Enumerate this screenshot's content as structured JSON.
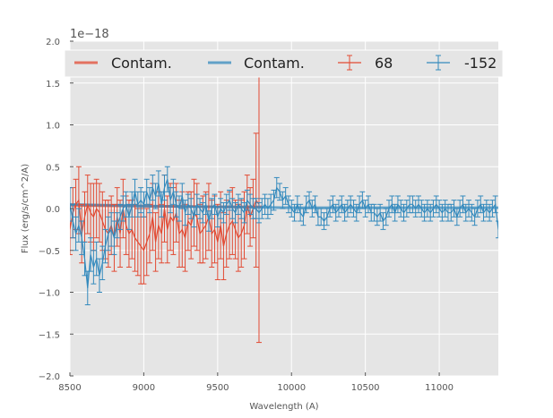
{
  "chart_data": {
    "type": "line",
    "title": "",
    "xlabel": "Wavelength (A)",
    "ylabel": "Flux (erg/s/cm^2/A)",
    "y_offset_label": "1e−18",
    "xlim": [
      8500,
      11400
    ],
    "ylim": [
      -2.0,
      2.0
    ],
    "y_scale": 1e-18,
    "x_ticks": [
      8500,
      9000,
      9500,
      10000,
      10500,
      11000
    ],
    "y_ticks": [
      -2.0,
      -1.5,
      -1.0,
      -0.5,
      0.0,
      0.5,
      1.0,
      1.5,
      2.0
    ],
    "y_tick_labels": [
      "−2.0",
      "−1.5",
      "−1.0",
      "−0.5",
      "0.0",
      "0.5",
      "1.0",
      "1.5",
      "2.0"
    ],
    "grid": true,
    "legend_position": "top",
    "colors": {
      "red": "#e24a33",
      "blue": "#348abd",
      "background": "#e5e5e5"
    },
    "series": [
      {
        "name": "Contam.",
        "kind": "line",
        "color": "#e24a33",
        "x": [
          8500,
          9000,
          9500,
          9800
        ],
        "y": [
          0.04,
          0.03,
          0.02,
          0.02
        ]
      },
      {
        "name": "Contam.",
        "kind": "line",
        "color": "#348abd",
        "x": [
          8500,
          9000,
          9500,
          10000,
          10500,
          11000,
          11400
        ],
        "y": [
          0.05,
          0.03,
          0.02,
          0.01,
          0.01,
          0.01,
          0.01
        ]
      },
      {
        "name": "68",
        "kind": "errorbar",
        "color": "#e24a33",
        "x": [
          8500,
          8520,
          8540,
          8560,
          8580,
          8600,
          8620,
          8640,
          8660,
          8680,
          8700,
          8720,
          8740,
          8760,
          8780,
          8800,
          8820,
          8840,
          8860,
          8880,
          8900,
          8920,
          8940,
          8960,
          8980,
          9000,
          9020,
          9040,
          9060,
          9080,
          9100,
          9120,
          9140,
          9160,
          9180,
          9200,
          9220,
          9240,
          9260,
          9280,
          9300,
          9320,
          9340,
          9360,
          9380,
          9400,
          9420,
          9440,
          9460,
          9480,
          9500,
          9520,
          9540,
          9560,
          9580,
          9600,
          9620,
          9640,
          9660,
          9680,
          9700,
          9720,
          9740,
          9760,
          9780
        ],
        "y": [
          -0.25,
          -0.05,
          0.05,
          0.1,
          -0.3,
          -0.1,
          0.05,
          -0.05,
          -0.1,
          0.0,
          -0.05,
          -0.15,
          -0.25,
          -0.3,
          -0.2,
          -0.35,
          -0.1,
          -0.3,
          0.0,
          -0.2,
          -0.3,
          -0.25,
          -0.35,
          -0.4,
          -0.45,
          -0.5,
          -0.4,
          -0.3,
          -0.1,
          -0.4,
          -0.2,
          -0.3,
          0.0,
          -0.25,
          -0.1,
          -0.15,
          -0.05,
          -0.3,
          -0.25,
          -0.35,
          -0.15,
          -0.2,
          -0.05,
          -0.1,
          -0.3,
          -0.25,
          -0.2,
          -0.1,
          -0.3,
          -0.25,
          -0.4,
          -0.2,
          -0.45,
          -0.3,
          -0.2,
          -0.15,
          -0.25,
          -0.35,
          -0.3,
          -0.2,
          0.05,
          -0.1,
          0.0,
          0.1,
          0.05
        ],
        "err": [
          0.3,
          0.3,
          0.3,
          0.4,
          0.35,
          0.3,
          0.35,
          0.35,
          0.4,
          0.35,
          0.35,
          0.35,
          0.35,
          0.4,
          0.35,
          0.4,
          0.35,
          0.4,
          0.35,
          0.35,
          0.4,
          0.35,
          0.4,
          0.4,
          0.45,
          0.4,
          0.4,
          0.35,
          0.4,
          0.35,
          0.4,
          0.35,
          0.4,
          0.4,
          0.4,
          0.4,
          0.35,
          0.4,
          0.45,
          0.4,
          0.35,
          0.4,
          0.4,
          0.4,
          0.35,
          0.4,
          0.4,
          0.4,
          0.4,
          0.4,
          0.45,
          0.4,
          0.4,
          0.4,
          0.4,
          0.4,
          0.35,
          0.4,
          0.4,
          0.4,
          0.35,
          0.35,
          0.35,
          0.8,
          1.65
        ]
      },
      {
        "name": "-152",
        "kind": "errorbar",
        "color": "#348abd",
        "x": [
          8500,
          8520,
          8540,
          8560,
          8580,
          8600,
          8620,
          8640,
          8660,
          8680,
          8700,
          8720,
          8740,
          8760,
          8780,
          8800,
          8820,
          8840,
          8860,
          8880,
          8900,
          8920,
          8940,
          8960,
          8980,
          9000,
          9020,
          9040,
          9060,
          9080,
          9100,
          9120,
          9140,
          9160,
          9180,
          9200,
          9220,
          9240,
          9260,
          9280,
          9300,
          9320,
          9340,
          9360,
          9380,
          9400,
          9420,
          9440,
          9460,
          9480,
          9500,
          9520,
          9540,
          9560,
          9580,
          9600,
          9620,
          9640,
          9660,
          9680,
          9700,
          9720,
          9740,
          9760,
          9780,
          9800,
          9820,
          9840,
          9860,
          9880,
          9900,
          9920,
          9940,
          9960,
          9980,
          10000,
          10020,
          10040,
          10060,
          10080,
          10100,
          10120,
          10140,
          10160,
          10180,
          10200,
          10220,
          10240,
          10260,
          10280,
          10300,
          10320,
          10340,
          10360,
          10380,
          10400,
          10420,
          10440,
          10460,
          10480,
          10500,
          10520,
          10540,
          10560,
          10580,
          10600,
          10620,
          10640,
          10660,
          10680,
          10700,
          10720,
          10740,
          10760,
          10780,
          10800,
          10820,
          10840,
          10860,
          10880,
          10900,
          10920,
          10940,
          10960,
          10980,
          11000,
          11020,
          11040,
          11060,
          11080,
          11100,
          11120,
          11140,
          11160,
          11180,
          11200,
          11220,
          11240,
          11260,
          11280,
          11300,
          11320,
          11340,
          11360,
          11380,
          11400
        ],
        "y": [
          0.05,
          -0.15,
          -0.3,
          -0.2,
          -0.35,
          -0.6,
          -0.95,
          -0.55,
          -0.7,
          -0.6,
          -0.8,
          -0.65,
          -0.45,
          -0.3,
          -0.25,
          -0.35,
          -0.2,
          -0.1,
          0.0,
          0.05,
          -0.1,
          0.05,
          0.2,
          0.05,
          0.1,
          0.05,
          0.2,
          0.1,
          0.25,
          0.15,
          0.3,
          0.05,
          0.25,
          0.35,
          0.1,
          0.2,
          0.05,
          0.0,
          0.15,
          -0.05,
          0.05,
          0.0,
          -0.1,
          0.05,
          0.0,
          -0.05,
          0.05,
          -0.15,
          0.0,
          0.05,
          -0.1,
          0.0,
          -0.05,
          0.05,
          0.1,
          0.0,
          -0.05,
          0.05,
          0.0,
          -0.05,
          0.1,
          0.05,
          0.0,
          0.0,
          -0.05,
          0.0,
          0.05,
          0.0,
          0.05,
          0.1,
          0.25,
          0.2,
          0.1,
          0.15,
          0.05,
          0.0,
          -0.05,
          0.05,
          -0.05,
          -0.1,
          0.05,
          0.1,
          0.0,
          0.05,
          -0.1,
          -0.1,
          -0.15,
          -0.1,
          0.0,
          0.05,
          -0.05,
          0.0,
          0.05,
          -0.05,
          0.0,
          0.05,
          0.0,
          -0.05,
          0.05,
          0.1,
          0.0,
          0.05,
          -0.05,
          -0.05,
          -0.1,
          -0.05,
          -0.15,
          -0.1,
          0.0,
          0.05,
          -0.05,
          0.05,
          0.0,
          -0.05,
          0.0,
          0.05,
          0.05,
          0.0,
          0.05,
          0.0,
          -0.05,
          0.0,
          -0.05,
          0.0,
          0.05,
          0.0,
          -0.05,
          0.0,
          -0.05,
          -0.05,
          0.0,
          -0.1,
          0.0,
          0.05,
          -0.05,
          0.0,
          -0.05,
          -0.1,
          0.0,
          0.05,
          -0.05,
          0.0,
          -0.05,
          0.0,
          0.05,
          -0.25
        ],
        "err": [
          0.2,
          0.2,
          0.2,
          0.2,
          0.2,
          0.2,
          0.2,
          0.2,
          0.2,
          0.2,
          0.2,
          0.2,
          0.2,
          0.2,
          0.2,
          0.2,
          0.15,
          0.15,
          0.15,
          0.15,
          0.15,
          0.15,
          0.15,
          0.15,
          0.15,
          0.15,
          0.15,
          0.15,
          0.15,
          0.15,
          0.15,
          0.15,
          0.15,
          0.15,
          0.15,
          0.15,
          0.15,
          0.15,
          0.15,
          0.15,
          0.12,
          0.12,
          0.12,
          0.12,
          0.12,
          0.12,
          0.12,
          0.12,
          0.12,
          0.12,
          0.12,
          0.12,
          0.12,
          0.12,
          0.12,
          0.12,
          0.12,
          0.12,
          0.12,
          0.12,
          0.12,
          0.12,
          0.12,
          0.12,
          0.12,
          0.12,
          0.12,
          0.12,
          0.12,
          0.12,
          0.12,
          0.1,
          0.1,
          0.1,
          0.1,
          0.1,
          0.1,
          0.1,
          0.1,
          0.1,
          0.1,
          0.1,
          0.1,
          0.1,
          0.1,
          0.1,
          0.1,
          0.1,
          0.1,
          0.1,
          0.1,
          0.1,
          0.1,
          0.1,
          0.1,
          0.1,
          0.1,
          0.1,
          0.1,
          0.1,
          0.1,
          0.1,
          0.1,
          0.1,
          0.1,
          0.1,
          0.1,
          0.1,
          0.1,
          0.1,
          0.1,
          0.1,
          0.1,
          0.1,
          0.1,
          0.1,
          0.1,
          0.1,
          0.1,
          0.1,
          0.1,
          0.1,
          0.1,
          0.1,
          0.1,
          0.1,
          0.1,
          0.1,
          0.1,
          0.1,
          0.1,
          0.1,
          0.1,
          0.1,
          0.1,
          0.1,
          0.1,
          0.1,
          0.1,
          0.1,
          0.1,
          0.1,
          0.1,
          0.1,
          0.1,
          0.1
        ]
      }
    ]
  }
}
